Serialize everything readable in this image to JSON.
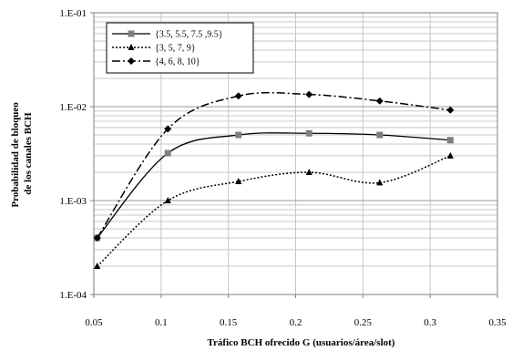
{
  "chart_data": {
    "type": "line",
    "title": "",
    "xlabel": "Tráfico BCH ofrecido G (usuarios/área/slot)",
    "ylabel": [
      "Probabilidad de bloqueo",
      "de los canales BCH"
    ],
    "x_ticks": [
      "0.05",
      "0.1",
      "0.15",
      "0.2",
      "0.25",
      "0.3",
      "0.35"
    ],
    "x_tick_values": [
      0.05,
      0.1,
      0.15,
      0.2,
      0.25,
      0.3,
      0.35
    ],
    "y_ticks": [
      "1.E-04",
      "1.E-03",
      "1.E-02",
      "1.E-01"
    ],
    "y_tick_values": [
      0.0001,
      0.001,
      0.01,
      0.1
    ],
    "xlim": [
      0.05,
      0.35
    ],
    "ylim": [
      0.0001,
      0.1
    ],
    "y_scale": "log",
    "grid": true,
    "legend_position": "top-left",
    "x": [
      0.0525,
      0.105,
      0.1575,
      0.21,
      0.2625,
      0.315
    ],
    "series": [
      {
        "name": "{3.5, 5.5, 7.5 ,9.5}",
        "marker": "square",
        "line_style": "solid",
        "color": "#000000",
        "marker_color": "#7f7f7f",
        "values": [
          0.0004,
          0.0032,
          0.005,
          0.0052,
          0.005,
          0.0044
        ]
      },
      {
        "name": "{3, 5, 7, 9}",
        "marker": "triangle",
        "line_style": "dotted",
        "color": "#000000",
        "marker_color": "#000000",
        "values": [
          0.0002,
          0.001,
          0.0016,
          0.002,
          0.00155,
          0.003
        ]
      },
      {
        "name": "{4, 6, 8, 10}",
        "marker": "diamond",
        "line_style": "dashdot",
        "color": "#000000",
        "marker_color": "#000000",
        "values": [
          0.0004,
          0.0058,
          0.013,
          0.0135,
          0.0115,
          0.0092
        ]
      }
    ]
  }
}
